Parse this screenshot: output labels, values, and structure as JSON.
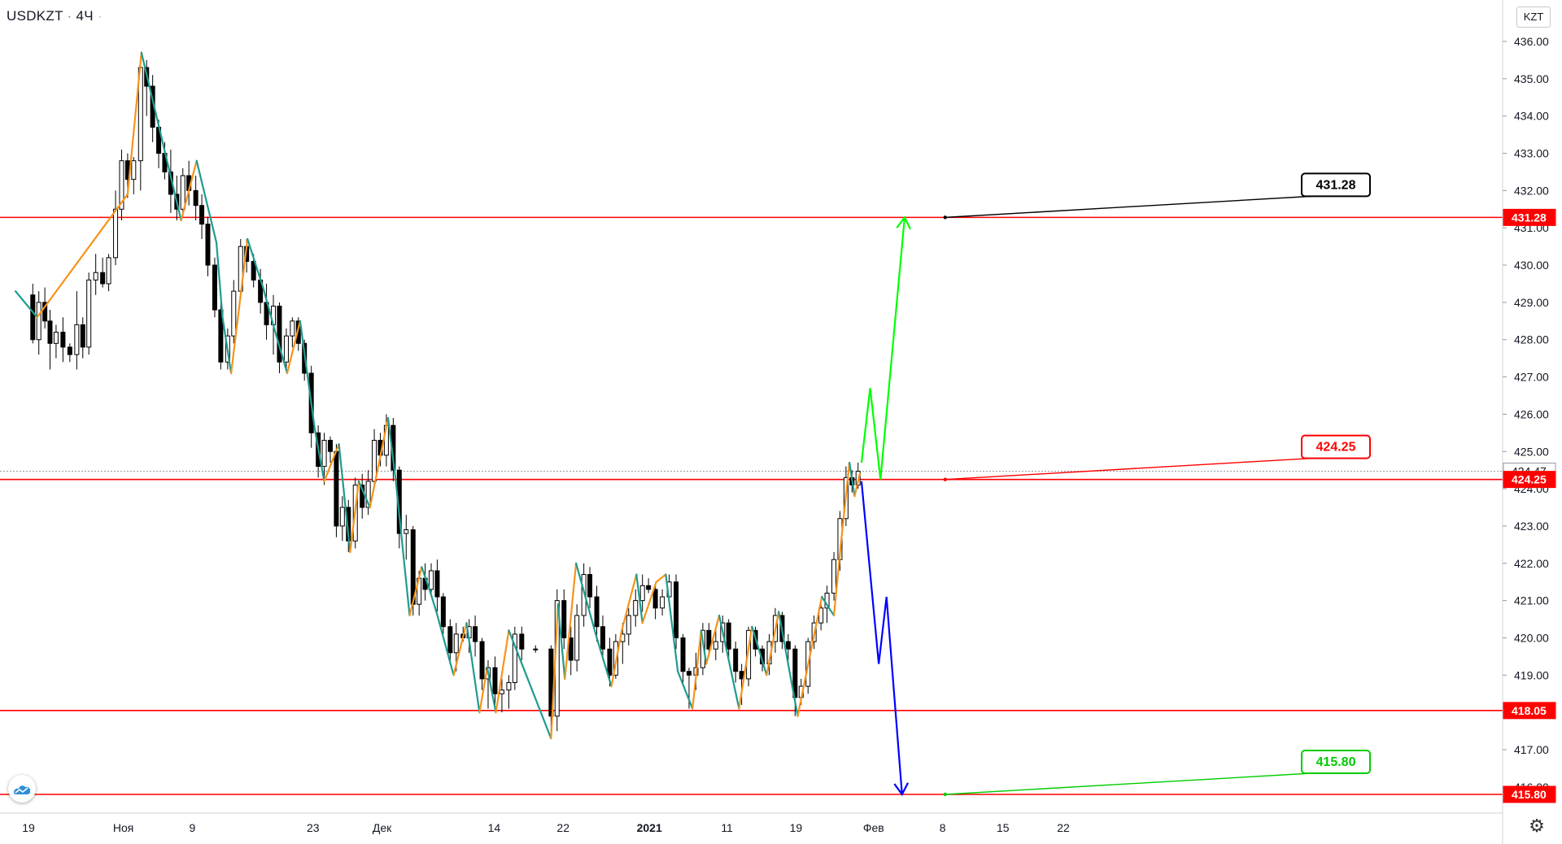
{
  "header": {
    "symbol": "USDKZT",
    "interval": "4Ч"
  },
  "currency_badge": "KZT",
  "colors": {
    "zigzag_up": "#f7931a",
    "zigzag_down": "#1f9b8f",
    "levels": "#ff0000",
    "bull_arrow": "#00ff00",
    "bear_arrow": "#0000ff",
    "candles": "#000000"
  },
  "icons": {
    "logo": "tradingview-cloud-icon",
    "settings": "gear-icon"
  },
  "chart_data": {
    "type": "candlestick",
    "title": "USDKZT · 4Ч",
    "y_axis": {
      "min": 415.3,
      "max": 436.6,
      "ticks": [
        416.0,
        417.0,
        418.0,
        419.0,
        420.0,
        421.0,
        422.0,
        423.0,
        424.0,
        425.0,
        426.0,
        427.0,
        428.0,
        429.0,
        430.0,
        431.0,
        432.0,
        433.0,
        434.0,
        435.0,
        436.0
      ]
    },
    "x_axis": {
      "range": [
        -1.5,
        94.5
      ],
      "ticks": [
        {
          "d": 0,
          "label": "19",
          "bold": false
        },
        {
          "d": 11,
          "label": "Ноя",
          "bold": false
        },
        {
          "d": 19,
          "label": "9",
          "bold": false
        },
        {
          "d": 33,
          "label": "23",
          "bold": false
        },
        {
          "d": 41,
          "label": "Дек",
          "bold": false
        },
        {
          "d": 54,
          "label": "14",
          "bold": false
        },
        {
          "d": 62,
          "label": "22",
          "bold": false
        },
        {
          "d": 72,
          "label": "2021",
          "bold": true
        },
        {
          "d": 81,
          "label": "11",
          "bold": false
        },
        {
          "d": 89,
          "label": "19",
          "bold": false
        },
        {
          "d": 98,
          "label": "Фев",
          "bold": false
        },
        {
          "d": 106,
          "label": "8",
          "bold": false
        },
        {
          "d": 113,
          "label": "15",
          "bold": false
        },
        {
          "d": 120,
          "label": "22",
          "bold": false
        }
      ]
    },
    "price_labels": [
      {
        "value": 431.28,
        "label": "431.28",
        "bg": "#ff0000",
        "fg": "#ffffff"
      },
      {
        "value": 424.47,
        "label": "424.47",
        "bg": "#ffffff",
        "fg": "#131722"
      },
      {
        "value": 424.25,
        "label": "424.25",
        "bg": "#ff0000",
        "fg": "#ffffff"
      },
      {
        "value": 418.05,
        "label": "418.05",
        "bg": "#ff0000",
        "fg": "#ffffff"
      },
      {
        "value": 415.8,
        "label": "415.80",
        "bg": "#ff0000",
        "fg": "#ffffff"
      }
    ],
    "levels": [
      431.28,
      424.25,
      418.05,
      415.8
    ],
    "last_price": 424.47,
    "callouts": [
      {
        "label": "431.28",
        "value": 431.28,
        "color": "#000000",
        "anchor_d": 106.3
      },
      {
        "label": "424.25",
        "value": 424.25,
        "color": "#ff0000",
        "anchor_d": 106.3
      },
      {
        "label": "415.80",
        "value": 415.8,
        "color": "#00cc00",
        "anchor_d": 106.3
      }
    ],
    "candles": [
      [
        0.5,
        429.2,
        429.5,
        427.9,
        428.0
      ],
      [
        1.2,
        428.0,
        429.3,
        427.6,
        429.0
      ],
      [
        1.9,
        429.0,
        429.4,
        428.3,
        428.5
      ],
      [
        2.5,
        428.5,
        428.8,
        427.2,
        427.9
      ],
      [
        3.2,
        427.9,
        428.4,
        427.5,
        428.2
      ],
      [
        4.0,
        428.2,
        428.6,
        427.4,
        427.8
      ],
      [
        4.8,
        427.8,
        427.9,
        427.4,
        427.6
      ],
      [
        5.6,
        427.6,
        429.3,
        427.2,
        428.4
      ],
      [
        6.3,
        428.4,
        428.6,
        427.5,
        427.8
      ],
      [
        7.0,
        427.8,
        429.8,
        427.6,
        429.6
      ],
      [
        7.8,
        429.6,
        430.3,
        429.2,
        429.8
      ],
      [
        8.6,
        429.8,
        430.2,
        429.4,
        429.5
      ],
      [
        9.3,
        429.5,
        430.3,
        429.3,
        430.2
      ],
      [
        10.1,
        430.2,
        432.0,
        430.0,
        431.5
      ],
      [
        10.8,
        431.5,
        433.1,
        431.2,
        432.8
      ],
      [
        11.5,
        432.8,
        433.0,
        431.8,
        432.3
      ],
      [
        12.2,
        432.3,
        432.9,
        431.9,
        432.8
      ],
      [
        13.0,
        432.8,
        435.6,
        432.0,
        435.3
      ],
      [
        13.7,
        435.3,
        435.5,
        434.0,
        434.8
      ],
      [
        14.4,
        434.8,
        435.1,
        433.3,
        433.7
      ],
      [
        15.1,
        433.7,
        433.9,
        432.6,
        433.0
      ],
      [
        15.8,
        433.0,
        433.3,
        432.3,
        432.5
      ],
      [
        16.5,
        432.5,
        433.1,
        431.4,
        431.9
      ],
      [
        17.2,
        431.9,
        432.4,
        431.2,
        431.5
      ],
      [
        17.9,
        431.5,
        432.6,
        431.3,
        432.4
      ],
      [
        18.6,
        432.4,
        432.8,
        431.6,
        432.0
      ],
      [
        19.4,
        432.0,
        432.4,
        431.2,
        431.6
      ],
      [
        20.1,
        431.6,
        431.9,
        430.7,
        431.1
      ],
      [
        20.8,
        431.1,
        431.3,
        429.7,
        430.0
      ],
      [
        21.6,
        430.0,
        430.2,
        428.6,
        428.8
      ],
      [
        22.3,
        428.8,
        429.0,
        427.2,
        427.4
      ],
      [
        23.1,
        427.4,
        428.3,
        427.2,
        428.1
      ],
      [
        23.8,
        428.1,
        429.6,
        427.9,
        429.3
      ],
      [
        24.6,
        429.3,
        430.7,
        429.1,
        430.5
      ],
      [
        25.3,
        430.5,
        430.7,
        429.8,
        430.1
      ],
      [
        26.1,
        430.1,
        430.3,
        429.4,
        429.6
      ],
      [
        26.9,
        429.6,
        429.9,
        428.7,
        429.0
      ],
      [
        27.6,
        429.0,
        429.5,
        428.0,
        428.4
      ],
      [
        28.4,
        428.4,
        429.2,
        427.6,
        428.9
      ],
      [
        29.1,
        428.9,
        429.0,
        427.1,
        427.4
      ],
      [
        29.9,
        427.4,
        428.3,
        427.2,
        428.1
      ],
      [
        30.6,
        428.1,
        428.6,
        427.8,
        428.5
      ],
      [
        31.3,
        428.5,
        428.6,
        427.7,
        427.9
      ],
      [
        32.0,
        427.9,
        428.0,
        426.9,
        427.1
      ],
      [
        32.8,
        427.1,
        427.3,
        425.1,
        425.5
      ],
      [
        33.6,
        425.5,
        425.7,
        424.3,
        424.6
      ],
      [
        34.3,
        424.6,
        425.5,
        424.1,
        425.3
      ],
      [
        35.0,
        425.3,
        425.4,
        424.7,
        425.0
      ],
      [
        35.7,
        425.0,
        425.2,
        422.7,
        423.0
      ],
      [
        36.4,
        423.0,
        423.8,
        422.6,
        423.5
      ],
      [
        37.1,
        423.5,
        423.7,
        422.3,
        422.6
      ],
      [
        37.9,
        422.6,
        424.3,
        422.4,
        424.1
      ],
      [
        38.7,
        424.1,
        424.4,
        423.2,
        423.5
      ],
      [
        39.4,
        423.5,
        424.5,
        423.3,
        424.2
      ],
      [
        40.1,
        424.2,
        425.6,
        424.0,
        425.3
      ],
      [
        40.8,
        425.3,
        425.5,
        424.6,
        424.9
      ],
      [
        41.5,
        424.9,
        426.0,
        424.6,
        425.7
      ],
      [
        42.3,
        425.7,
        425.9,
        424.2,
        424.5
      ],
      [
        43.0,
        424.5,
        424.6,
        422.4,
        422.8
      ],
      [
        43.8,
        422.8,
        423.3,
        422.1,
        422.9
      ],
      [
        44.6,
        422.9,
        423.0,
        420.6,
        420.9
      ],
      [
        45.3,
        420.9,
        421.8,
        420.6,
        421.6
      ],
      [
        46.0,
        421.6,
        422.0,
        421.0,
        421.3
      ],
      [
        46.7,
        421.3,
        422.0,
        421.1,
        421.8
      ],
      [
        47.4,
        421.8,
        422.1,
        420.7,
        421.1
      ],
      [
        48.1,
        421.1,
        421.2,
        420.1,
        420.3
      ],
      [
        48.9,
        420.3,
        420.5,
        419.3,
        419.6
      ],
      [
        49.6,
        419.6,
        420.4,
        419.1,
        420.1
      ],
      [
        50.4,
        420.1,
        420.3,
        419.9,
        420.0
      ],
      [
        51.1,
        420.0,
        420.5,
        419.6,
        420.3
      ],
      [
        51.8,
        420.3,
        420.6,
        419.5,
        419.9
      ],
      [
        52.6,
        419.9,
        420.0,
        418.6,
        418.9
      ],
      [
        53.3,
        418.9,
        419.4,
        418.1,
        419.2
      ],
      [
        54.1,
        419.2,
        419.5,
        418.1,
        418.5
      ],
      [
        54.9,
        418.5,
        418.9,
        418.0,
        418.6
      ],
      [
        55.7,
        418.6,
        419.0,
        418.1,
        418.8
      ],
      [
        56.4,
        418.8,
        420.3,
        418.6,
        420.1
      ],
      [
        57.2,
        420.1,
        420.3,
        419.4,
        419.7
      ],
      [
        58.8,
        419.7,
        419.8,
        419.6,
        419.7
      ],
      [
        60.6,
        419.7,
        419.8,
        417.3,
        417.9
      ],
      [
        61.3,
        417.9,
        421.3,
        417.5,
        421.0
      ],
      [
        62.1,
        421.0,
        421.3,
        419.7,
        420.0
      ],
      [
        62.9,
        420.0,
        420.3,
        419.0,
        419.4
      ],
      [
        63.6,
        419.4,
        420.9,
        419.1,
        420.6
      ],
      [
        64.4,
        420.6,
        422.0,
        420.3,
        421.7
      ],
      [
        65.1,
        421.7,
        421.9,
        420.8,
        421.1
      ],
      [
        65.9,
        421.1,
        421.4,
        419.9,
        420.3
      ],
      [
        66.6,
        420.3,
        420.6,
        419.4,
        419.7
      ],
      [
        67.4,
        419.7,
        420.0,
        418.7,
        419.0
      ],
      [
        68.1,
        419.0,
        420.1,
        418.9,
        419.9
      ],
      [
        68.9,
        419.9,
        420.4,
        419.3,
        420.1
      ],
      [
        69.6,
        420.1,
        420.8,
        419.8,
        420.6
      ],
      [
        70.4,
        420.6,
        421.3,
        420.3,
        421.0
      ],
      [
        71.2,
        421.0,
        421.7,
        420.7,
        421.4
      ],
      [
        71.9,
        421.4,
        421.6,
        421.2,
        421.3
      ],
      [
        72.7,
        421.3,
        421.4,
        420.5,
        420.8
      ],
      [
        73.5,
        420.8,
        421.3,
        420.6,
        421.1
      ],
      [
        74.3,
        421.1,
        421.7,
        420.9,
        421.5
      ],
      [
        75.1,
        421.5,
        421.7,
        419.7,
        420.0
      ],
      [
        75.9,
        420.0,
        420.1,
        418.8,
        419.1
      ],
      [
        76.6,
        419.1,
        419.2,
        418.1,
        419.0
      ],
      [
        77.4,
        419.0,
        419.6,
        418.6,
        419.2
      ],
      [
        78.2,
        419.2,
        420.4,
        419.0,
        420.2
      ],
      [
        78.9,
        420.2,
        420.4,
        419.5,
        419.7
      ],
      [
        79.7,
        419.7,
        420.2,
        419.4,
        419.9
      ],
      [
        80.5,
        419.9,
        420.6,
        419.6,
        420.4
      ],
      [
        81.2,
        420.4,
        420.5,
        419.4,
        419.7
      ],
      [
        82.0,
        419.7,
        419.9,
        418.8,
        419.1
      ],
      [
        82.7,
        419.1,
        419.3,
        418.2,
        418.9
      ],
      [
        83.5,
        418.9,
        420.3,
        418.7,
        420.2
      ],
      [
        84.3,
        420.2,
        420.3,
        419.5,
        419.7
      ],
      [
        85.1,
        419.7,
        419.8,
        419.1,
        419.3
      ],
      [
        85.9,
        419.3,
        420.1,
        419.0,
        419.9
      ],
      [
        86.6,
        419.9,
        420.8,
        419.6,
        420.6
      ],
      [
        87.4,
        420.6,
        420.7,
        419.7,
        419.9
      ],
      [
        88.1,
        419.9,
        420.1,
        419.4,
        419.7
      ],
      [
        88.9,
        419.7,
        419.8,
        417.9,
        418.4
      ],
      [
        89.6,
        418.4,
        418.9,
        418.2,
        418.7
      ],
      [
        90.4,
        418.7,
        420.0,
        418.5,
        419.9
      ],
      [
        91.1,
        419.9,
        420.6,
        419.7,
        420.4
      ],
      [
        91.9,
        420.4,
        421.0,
        420.2,
        420.8
      ],
      [
        92.6,
        420.8,
        421.4,
        420.4,
        421.2
      ],
      [
        93.4,
        421.2,
        422.3,
        421.0,
        422.1
      ],
      [
        94.1,
        422.1,
        423.4,
        421.8,
        423.2
      ],
      [
        94.8,
        423.2,
        424.6,
        423.0,
        424.3
      ],
      [
        95.5,
        424.3,
        424.5,
        423.9,
        424.1
      ],
      [
        96.2,
        424.1,
        424.7,
        424.0,
        424.47
      ]
    ],
    "zigzag": [
      [
        -1.5,
        429.3
      ],
      [
        1.0,
        428.6
      ],
      [
        11.5,
        431.9
      ],
      [
        13.1,
        435.7
      ],
      [
        17.7,
        431.2
      ],
      [
        19.5,
        432.8
      ],
      [
        21.8,
        430.6
      ],
      [
        22.5,
        428.6
      ],
      [
        23.5,
        427.1
      ],
      [
        25.4,
        430.7
      ],
      [
        27.2,
        429.4
      ],
      [
        28.5,
        428.3
      ],
      [
        30.0,
        427.1
      ],
      [
        31.5,
        428.5
      ],
      [
        33.2,
        425.6
      ],
      [
        34.3,
        424.2
      ],
      [
        36.0,
        425.2
      ],
      [
        37.3,
        422.3
      ],
      [
        38.3,
        424.2
      ],
      [
        39.6,
        423.5
      ],
      [
        41.7,
        425.9
      ],
      [
        42.6,
        424.2
      ],
      [
        44.2,
        420.6
      ],
      [
        45.6,
        421.9
      ],
      [
        46.5,
        421.3
      ],
      [
        47.3,
        420.7
      ],
      [
        49.3,
        419.0
      ],
      [
        50.8,
        420.4
      ],
      [
        52.3,
        418.0
      ],
      [
        53.2,
        419.2
      ],
      [
        54.2,
        418.0
      ],
      [
        55.7,
        420.2
      ],
      [
        60.6,
        417.3
      ],
      [
        61.4,
        420.9
      ],
      [
        62.2,
        418.9
      ],
      [
        63.5,
        422.0
      ],
      [
        65.9,
        420.0
      ],
      [
        67.6,
        418.7
      ],
      [
        68.8,
        420.2
      ],
      [
        70.5,
        421.7
      ],
      [
        71.2,
        420.4
      ],
      [
        72.8,
        421.5
      ],
      [
        73.9,
        421.7
      ],
      [
        75.3,
        419.1
      ],
      [
        77.0,
        418.1
      ],
      [
        78.0,
        420.2
      ],
      [
        78.6,
        419.3
      ],
      [
        80.1,
        420.6
      ],
      [
        82.4,
        418.1
      ],
      [
        83.9,
        420.3
      ],
      [
        85.6,
        419.0
      ],
      [
        87.0,
        420.7
      ],
      [
        87.7,
        419.8
      ],
      [
        89.2,
        417.9
      ],
      [
        92.0,
        421.1
      ],
      [
        93.4,
        420.6
      ],
      [
        94.2,
        422.5
      ],
      [
        95.2,
        424.7
      ],
      [
        95.8,
        423.8
      ],
      [
        96.4,
        424.4
      ]
    ],
    "bull_path": [
      [
        96.6,
        424.7
      ],
      [
        97.6,
        426.7
      ],
      [
        98.8,
        424.25
      ],
      [
        101.6,
        431.28
      ]
    ],
    "bear_path": [
      [
        96.6,
        424.2
      ],
      [
        98.6,
        419.3
      ],
      [
        99.5,
        421.1
      ],
      [
        101.3,
        415.8
      ]
    ]
  }
}
